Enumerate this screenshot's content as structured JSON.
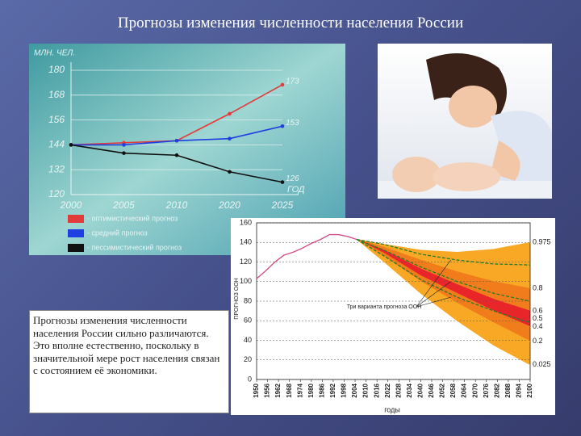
{
  "title": "Прогнозы изменения численности населения России",
  "text": "Прогнозы изменения численности населения России сильно различаются. Это вполне естественно, поскольку в значительной мере рост населения связан с состоянием её экономики.",
  "chart_data": [
    {
      "type": "line",
      "y_label": "МЛН. ЧЕЛ.",
      "x_label": "ГОД",
      "categories": [
        "2000",
        "2005",
        "2010",
        "2020",
        "2025"
      ],
      "ylim": [
        120,
        180
      ],
      "yticks": [
        120,
        132,
        144,
        156,
        168,
        180
      ],
      "grid": true,
      "series": [
        {
          "name": "- оптимистический прогноз",
          "color": "#e23b3b",
          "values": [
            144,
            145,
            146,
            159,
            173
          ]
        },
        {
          "name": "- средний прогноз",
          "color": "#1f3fe0",
          "values": [
            144,
            144,
            146,
            147,
            153
          ]
        },
        {
          "name": "- пессимистический прогноз",
          "color": "#111111",
          "values": [
            144,
            140,
            139,
            131,
            126
          ]
        }
      ]
    },
    {
      "type": "fan",
      "y_label": "ПРОГНОЗ ООН",
      "x_label": "годы",
      "annotation": "Три варианта прогноза ООН",
      "xlim": [
        1950,
        2100
      ],
      "xticks": [
        1950,
        1956,
        1962,
        1968,
        1974,
        1980,
        1986,
        1992,
        1998,
        2004,
        2010,
        2016,
        2022,
        2028,
        2034,
        2040,
        2046,
        2052,
        2058,
        2064,
        2070,
        2076,
        2082,
        2088,
        2094,
        2100
      ],
      "ylim": [
        0,
        160
      ],
      "yticks": [
        0,
        20,
        40,
        60,
        80,
        100,
        120,
        140,
        160
      ],
      "grid": true,
      "history": {
        "color": "#d0508a",
        "x": [
          1950,
          1955,
          1960,
          1965,
          1970,
          1975,
          1980,
          1985,
          1990,
          1995,
          2000,
          2005
        ],
        "values": [
          103,
          111,
          120,
          127,
          130,
          134,
          139,
          143,
          148,
          148,
          146,
          143
        ]
      },
      "x": [
        2005,
        2020,
        2040,
        2060,
        2080,
        2100
      ],
      "series": [
        {
          "name": "0.975",
          "color": "#f9a825",
          "values": [
            143,
            138,
            132,
            130,
            133,
            140
          ]
        },
        {
          "name": "0.8",
          "color": "#f07c1c",
          "values": [
            143,
            135,
            122,
            110,
            100,
            93
          ]
        },
        {
          "name": "0.6",
          "color": "#e8262a",
          "values": [
            143,
            132,
            113,
            97,
            82,
            70
          ]
        },
        {
          "name": "0.5",
          "color": "#e8262a",
          "values": [
            143,
            131,
            110,
            92,
            76,
            62
          ]
        },
        {
          "name": "0.4",
          "color": "#f07c1c",
          "values": [
            143,
            129,
            106,
            88,
            70,
            54
          ]
        },
        {
          "name": "0.2",
          "color": "#f9a825",
          "values": [
            143,
            126,
            100,
            78,
            58,
            39
          ]
        },
        {
          "name": "0.025",
          "color": "#f9a825",
          "values": [
            143,
            120,
            88,
            60,
            35,
            15
          ]
        }
      ],
      "variants": {
        "color": "#2a7a2a",
        "values": [
          [
            143,
            138,
            128,
            122,
            118,
            117
          ],
          [
            143,
            132,
            115,
            100,
            88,
            80
          ],
          [
            143,
            126,
            102,
            84,
            70,
            58
          ]
        ]
      }
    }
  ]
}
